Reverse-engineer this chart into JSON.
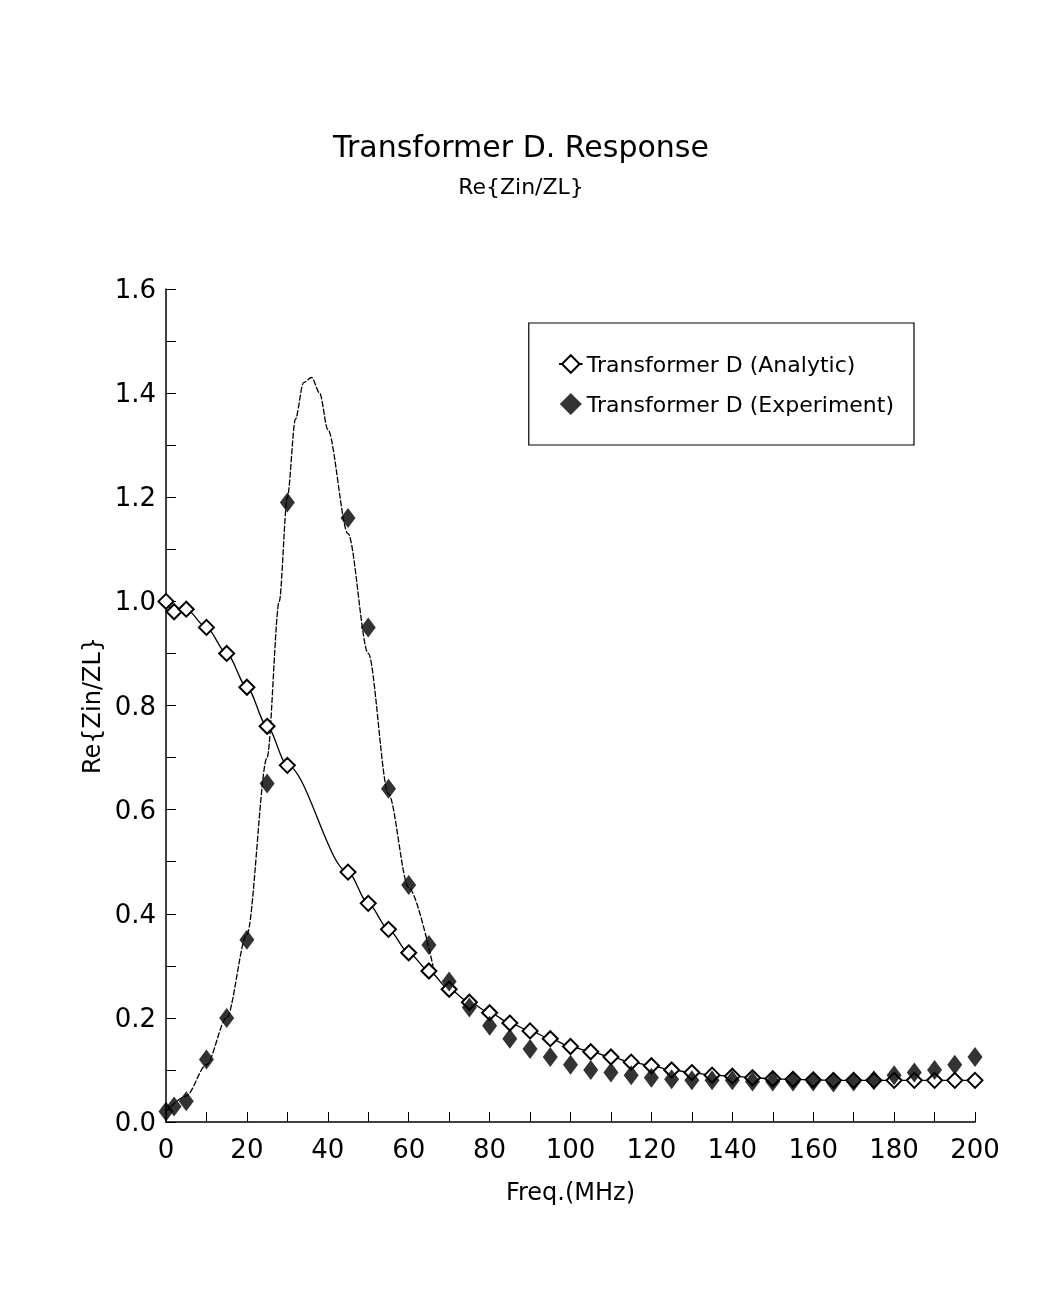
{
  "chart_data": {
    "type": "line",
    "title": "Transformer D. Response",
    "subtitle": "Re{Zin/ZL}",
    "xlabel": "Freq.(MHz)",
    "ylabel": "Re{Zin/ZL}",
    "xlim": [
      0,
      200
    ],
    "xticks": [
      0,
      {
        "value": 10,
        "label": null
      },
      20,
      {
        "value": 30,
        "label": null
      },
      40,
      {
        "value": 50,
        "label": null
      },
      60,
      {
        "value": 70,
        "label": null
      },
      80,
      {
        "value": 90,
        "label": null
      },
      100,
      {
        "value": 110,
        "label": null
      },
      120,
      {
        "value": 130,
        "label": null
      },
      140,
      {
        "value": 150,
        "label": null
      },
      160,
      {
        "value": 170,
        "label": null
      },
      180,
      {
        "value": 190,
        "label": null
      },
      200
    ],
    "ylim": [
      0,
      1.6
    ],
    "yticks": [
      {
        "value": 0,
        "label": "0.0"
      },
      {
        "value": 0.1,
        "label": null
      },
      0.2,
      {
        "value": 0.3,
        "label": null
      },
      0.4,
      {
        "value": 0.5,
        "label": null
      },
      0.6,
      {
        "value": 0.7,
        "label": null
      },
      0.8,
      {
        "value": 0.9,
        "label": null
      },
      {
        "value": 1,
        "label": "1.0"
      },
      {
        "value": 1.1,
        "label": null
      },
      1.2,
      {
        "value": 1.3,
        "label": null
      },
      1.4,
      {
        "value": 1.5,
        "label": null
      },
      1.6
    ],
    "grid": false,
    "legend": "top right",
    "series": [
      {
        "name": "Transformer D (Analytic)",
        "color": "#000000",
        "marker": "diamond",
        "line_style": "solid",
        "x": [
          0,
          2,
          5,
          10,
          15,
          20,
          25,
          30,
          45,
          50,
          55,
          60,
          65,
          70,
          75,
          80,
          85,
          90,
          95,
          100,
          105,
          110,
          115,
          120,
          125,
          130,
          135,
          140,
          145,
          150,
          155,
          160,
          165,
          170,
          175,
          180,
          185,
          190,
          195,
          200
        ],
        "values": [
          1.0,
          0.98,
          0.985,
          0.95,
          0.9,
          0.835,
          0.76,
          0.685,
          0.48,
          0.42,
          0.37,
          0.325,
          0.29,
          0.255,
          0.23,
          0.21,
          0.19,
          0.175,
          0.16,
          0.145,
          0.135,
          0.125,
          0.115,
          0.108,
          0.1,
          0.095,
          0.09,
          0.088,
          0.085,
          0.083,
          0.082,
          0.081,
          0.08,
          0.08,
          0.08,
          0.08,
          0.08,
          0.08,
          0.08,
          0.08
        ]
      },
      {
        "name": "Transformer D (Experiment)",
        "type": "scatter",
        "color": "#000000",
        "marker": "diamond",
        "x": [
          0,
          2,
          5,
          10,
          15,
          20,
          25,
          30,
          45,
          50,
          55,
          60,
          65,
          70,
          75,
          80,
          85,
          90,
          95,
          100,
          105,
          110,
          115,
          120,
          125,
          130,
          135,
          140,
          145,
          150,
          155,
          160,
          165,
          170,
          175,
          180,
          185,
          190,
          195,
          200
        ],
        "values": [
          0.02,
          0.03,
          0.04,
          0.12,
          0.2,
          0.35,
          0.65,
          1.19,
          1.16,
          0.95,
          0.64,
          0.455,
          0.34,
          0.27,
          0.22,
          0.185,
          0.16,
          0.14,
          0.125,
          0.11,
          0.1,
          0.095,
          0.09,
          0.085,
          0.082,
          0.08,
          0.08,
          0.08,
          0.078,
          0.078,
          0.078,
          0.078,
          0.076,
          0.078,
          0.08,
          0.09,
          0.095,
          0.1,
          0.11,
          0.125
        ]
      },
      {
        "color": "#000000",
        "marker": "none",
        "line_style": "dashed",
        "x": [
          0,
          5,
          10,
          15,
          20,
          25,
          28,
          30,
          32,
          34,
          36,
          38,
          40,
          45,
          50,
          55,
          60,
          66
        ],
        "values": [
          0.02,
          0.05,
          0.11,
          0.2,
          0.36,
          0.7,
          1.0,
          1.2,
          1.35,
          1.42,
          1.43,
          1.4,
          1.33,
          1.13,
          0.9,
          0.63,
          0.45,
          0.3
        ]
      }
    ]
  }
}
